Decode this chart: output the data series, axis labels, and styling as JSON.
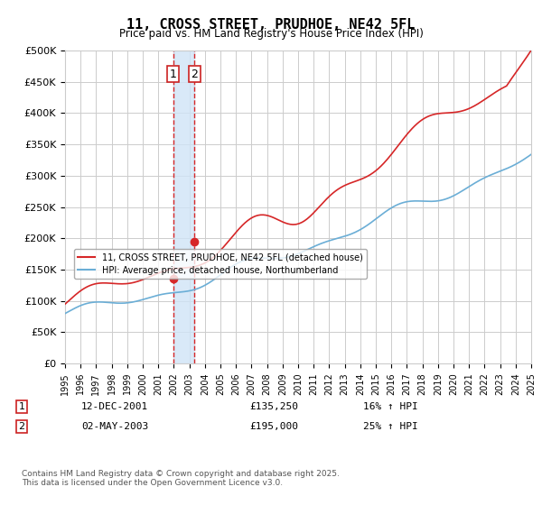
{
  "title": "11, CROSS STREET, PRUDHOE, NE42 5FL",
  "subtitle": "Price paid vs. HM Land Registry's House Price Index (HPI)",
  "ylabel_ticks": [
    "£0",
    "£50K",
    "£100K",
    "£150K",
    "£200K",
    "£250K",
    "£300K",
    "£350K",
    "£400K",
    "£450K",
    "£500K"
  ],
  "ylim": [
    0,
    500000
  ],
  "xlim_year": [
    1995,
    2025
  ],
  "sale1_year": 2001.95,
  "sale1_label": "1",
  "sale1_date": "12-DEC-2001",
  "sale1_price": 135250,
  "sale1_hpi": "16% ↑ HPI",
  "sale2_year": 2003.33,
  "sale2_label": "2",
  "sale2_date": "02-MAY-2003",
  "sale2_price": 195000,
  "sale2_hpi": "25% ↑ HPI",
  "hpi_line_color": "#6baed6",
  "price_line_color": "#d62728",
  "sale_marker_color": "#d62728",
  "vband_color": "#d0e4f7",
  "vline_color": "#d62728",
  "legend1_label": "11, CROSS STREET, PRUDHOE, NE42 5FL (detached house)",
  "legend2_label": "HPI: Average price, detached house, Northumberland",
  "footnote": "Contains HM Land Registry data © Crown copyright and database right 2025.\nThis data is licensed under the Open Government Licence v3.0.",
  "background_color": "#ffffff",
  "grid_color": "#cccccc"
}
